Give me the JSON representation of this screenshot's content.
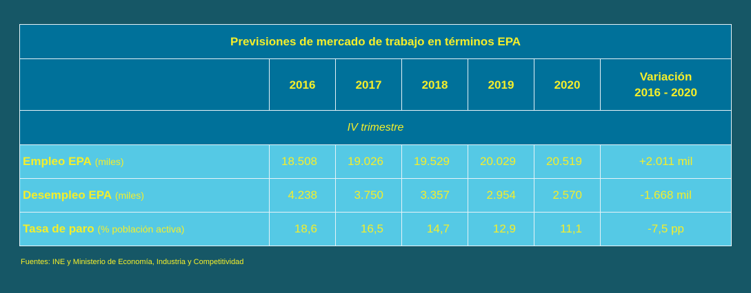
{
  "table": {
    "title": "Previsiones de mercado de trabajo en términos EPA",
    "years": [
      "2016",
      "2017",
      "2018",
      "2019",
      "2020"
    ],
    "variation_header_line1": "Variación",
    "variation_header_line2": "2016 - 2020",
    "subheading": "IV trimestre",
    "rows": [
      {
        "label": "Empleo EPA",
        "unit": "(miles)",
        "values": [
          "18.508",
          "19.026",
          "19.529",
          "20.029",
          "20.519"
        ],
        "variation": "+2.011 mil"
      },
      {
        "label": "Desempleo EPA",
        "unit": "(miles)",
        "values": [
          "4.238",
          "3.750",
          "3.357",
          "2.954",
          "2.570"
        ],
        "variation": "-1.668 mil"
      },
      {
        "label": "Tasa de paro",
        "unit": "(% población activa)",
        "values": [
          "18,6",
          "16,5",
          "14,7",
          "12,9",
          "11,1"
        ],
        "variation": "-7,5 pp"
      }
    ]
  },
  "source": "Fuentes: INE y Ministerio de Economía, Industria y Competitividad",
  "colors": {
    "background": "#165766",
    "header_fill": "#00719a",
    "row_fill": "#55c9e5",
    "text": "#f4ee2b"
  }
}
